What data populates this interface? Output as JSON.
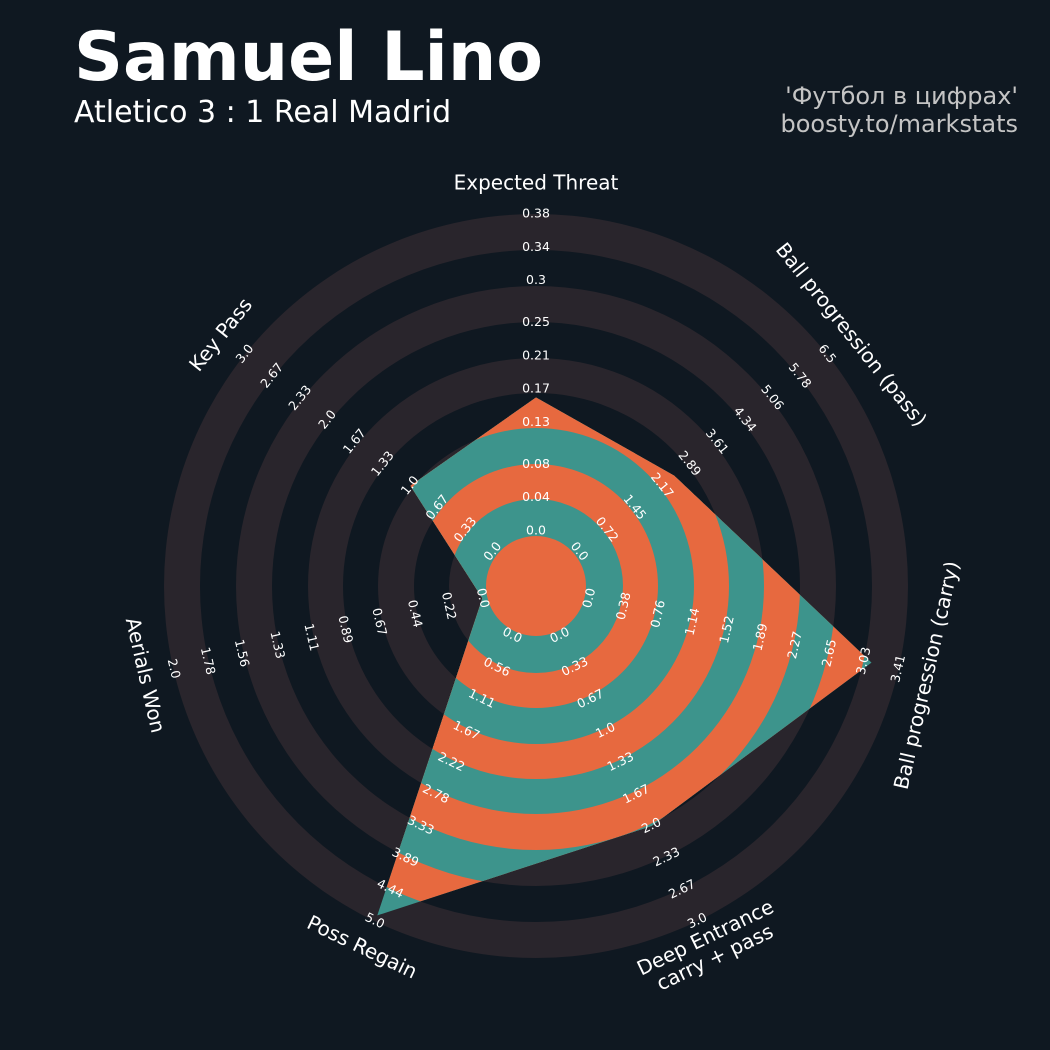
{
  "chart_data": {
    "type": "radar",
    "title": "Samuel Lino",
    "subtitle": "Atletico 3 : 1 Real Madrid",
    "credits": [
      "'Футбол в цифрах'",
      "boosty.to/markstats"
    ],
    "categories": [
      "Expected Threat",
      "Ball progression (pass)",
      "Ball progression (carry)",
      "Deep Entrance\ncarry + pass",
      "Poss Regain",
      "Aerials Won",
      "Key Pass"
    ],
    "values": [
      0.16,
      2.5,
      3.11,
      2.0,
      4.9,
      0,
      1.0
    ],
    "rlims": [
      [
        0,
        0.38
      ],
      [
        0,
        6.5
      ],
      [
        0,
        3.41
      ],
      [
        0,
        3
      ],
      [
        0,
        5
      ],
      [
        0,
        2
      ],
      [
        0,
        3
      ]
    ],
    "rticks": [
      [
        {
          "value": 0,
          "label": "0.0"
        },
        0.04,
        0.08,
        0.13,
        0.17,
        0.21,
        0.25,
        0.3,
        0.34,
        0.38
      ],
      [
        {
          "value": 0,
          "label": "0.0"
        },
        0.72,
        1.45,
        2.17,
        2.89,
        3.61,
        4.34,
        5.06,
        5.78,
        6.5
      ],
      [
        {
          "value": 0,
          "label": "0.0"
        },
        0.38,
        0.76,
        1.14,
        1.52,
        1.89,
        2.27,
        2.65,
        3.03,
        3.41
      ],
      [
        {
          "value": 0,
          "label": "0.0"
        },
        0.33,
        0.67,
        {
          "value": 1,
          "label": "1.0"
        },
        1.33,
        1.67,
        {
          "value": 2,
          "label": "2.0"
        },
        2.33,
        2.67,
        {
          "value": 3,
          "label": "3.0"
        }
      ],
      [
        {
          "value": 0,
          "label": "0.0"
        },
        0.56,
        1.11,
        1.67,
        2.22,
        2.78,
        3.33,
        3.89,
        4.44,
        {
          "value": 5,
          "label": "5.0"
        }
      ],
      [
        {
          "value": 0,
          "label": "0.0"
        },
        0.22,
        0.44,
        0.67,
        0.89,
        1.11,
        1.33,
        1.56,
        1.78,
        {
          "value": 2,
          "label": "2.0"
        }
      ],
      [
        {
          "value": 0,
          "label": "0.0"
        },
        0.33,
        0.67,
        {
          "value": 1,
          "label": "1.0"
        },
        1.33,
        1.67,
        {
          "value": 2,
          "label": "2.0"
        },
        2.33,
        2.67,
        {
          "value": 3,
          "label": "3.0"
        }
      ]
    ],
    "colors": {
      "background": "#0f1821",
      "ring": "#29252c",
      "inside": "#e7693f",
      "inside_alt": "#3d948c"
    }
  }
}
